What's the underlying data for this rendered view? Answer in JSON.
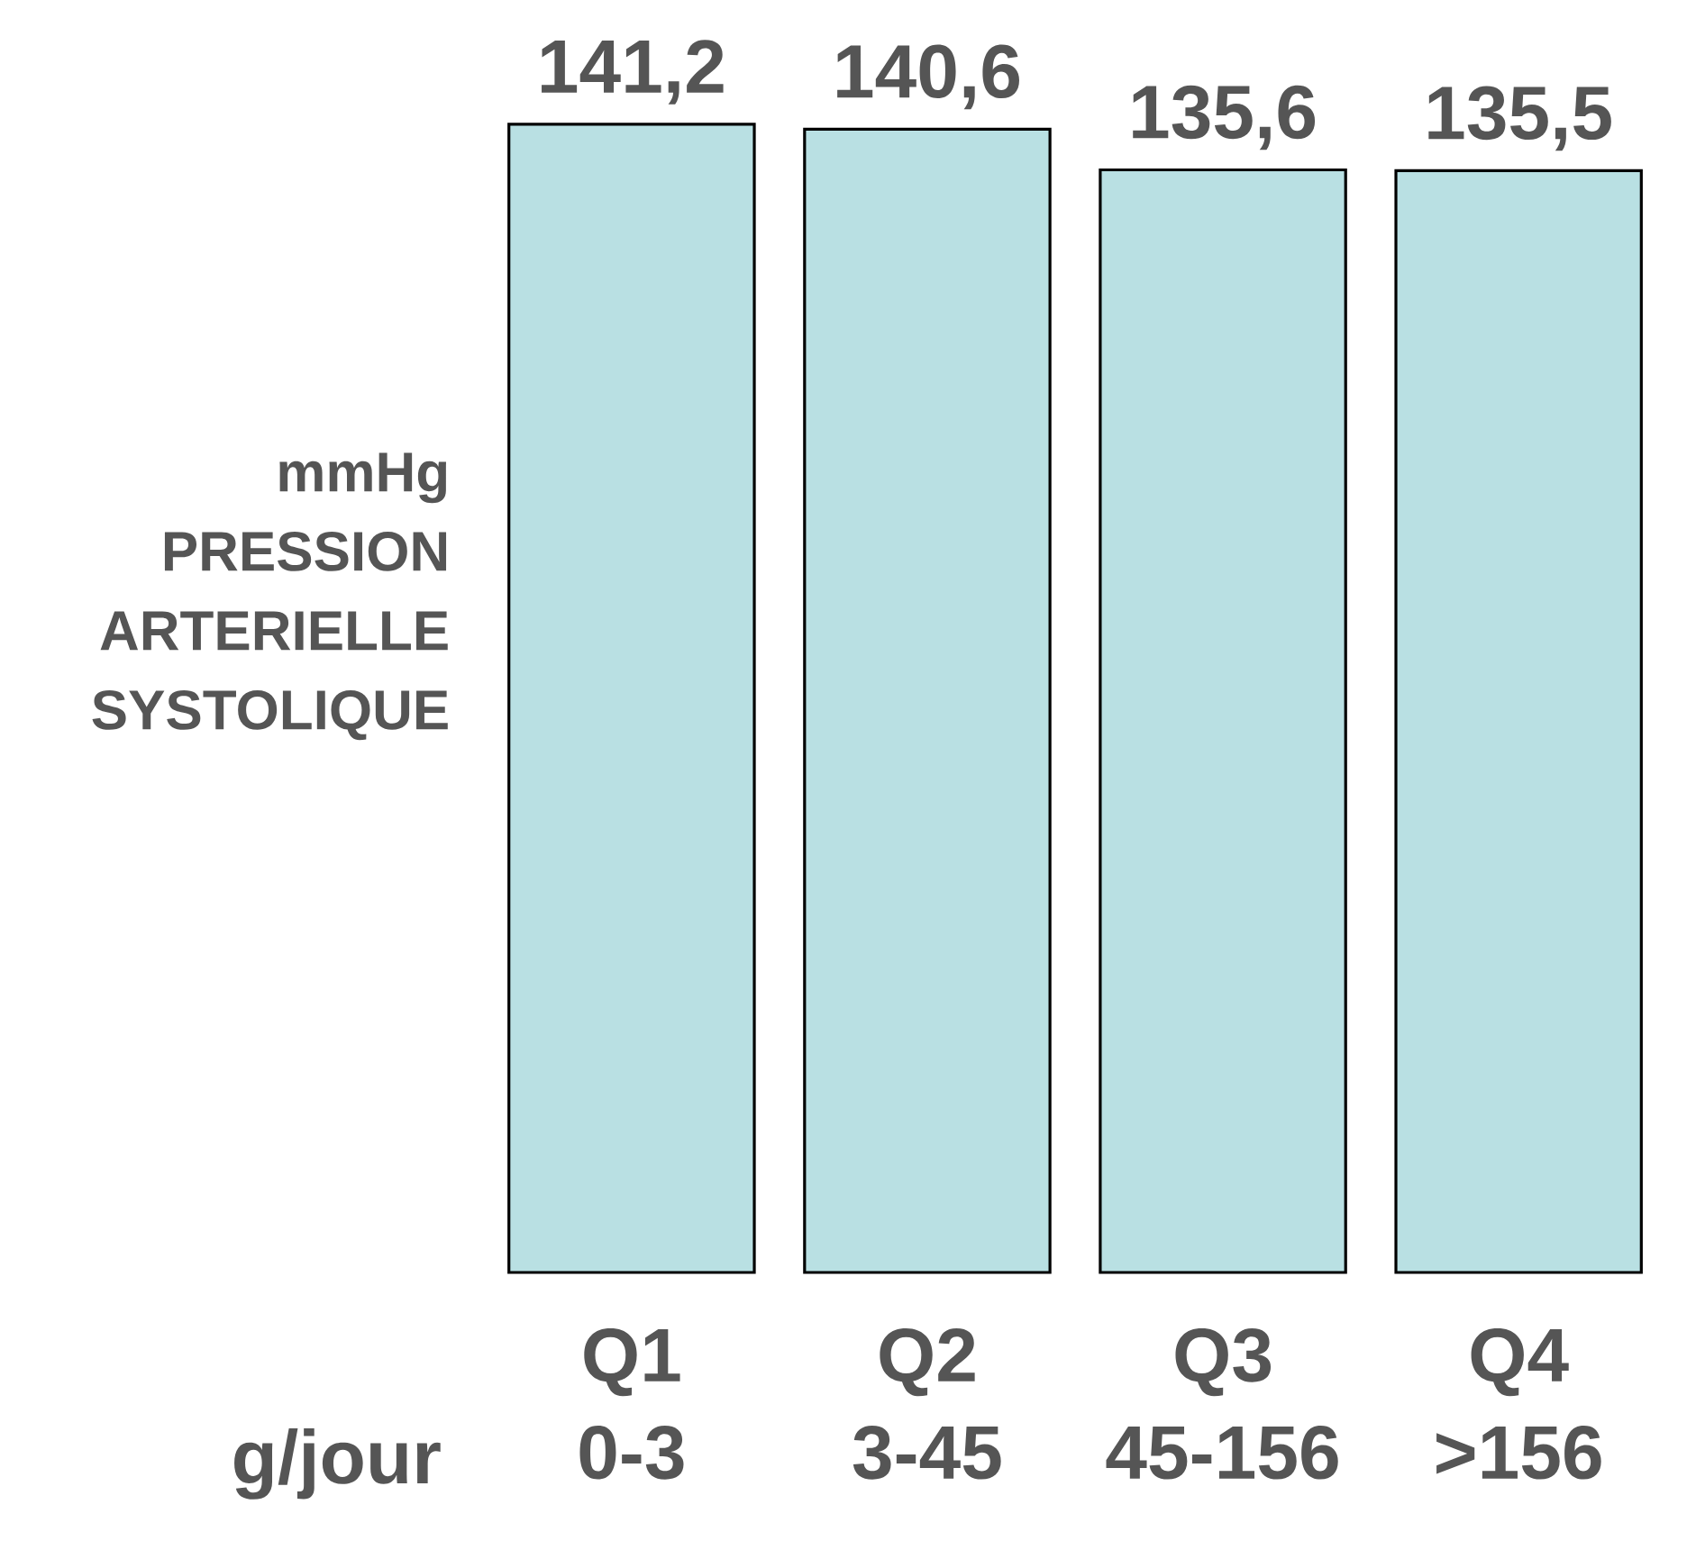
{
  "chart_data": {
    "type": "bar",
    "xlabel": "g/jour",
    "ylabel": "mmHg PRESSION ARTERIELLE SYSTOLIQUE",
    "categories": [
      "Q1 0-3",
      "Q2 3-45",
      "Q3 45-156",
      "Q4 >156"
    ],
    "values": [
      141.2,
      140.6,
      135.6,
      135.5
    ],
    "value_labels": [
      "141,2",
      "140,6",
      "135,6",
      "135,5"
    ],
    "color": "#b9e0e3"
  }
}
